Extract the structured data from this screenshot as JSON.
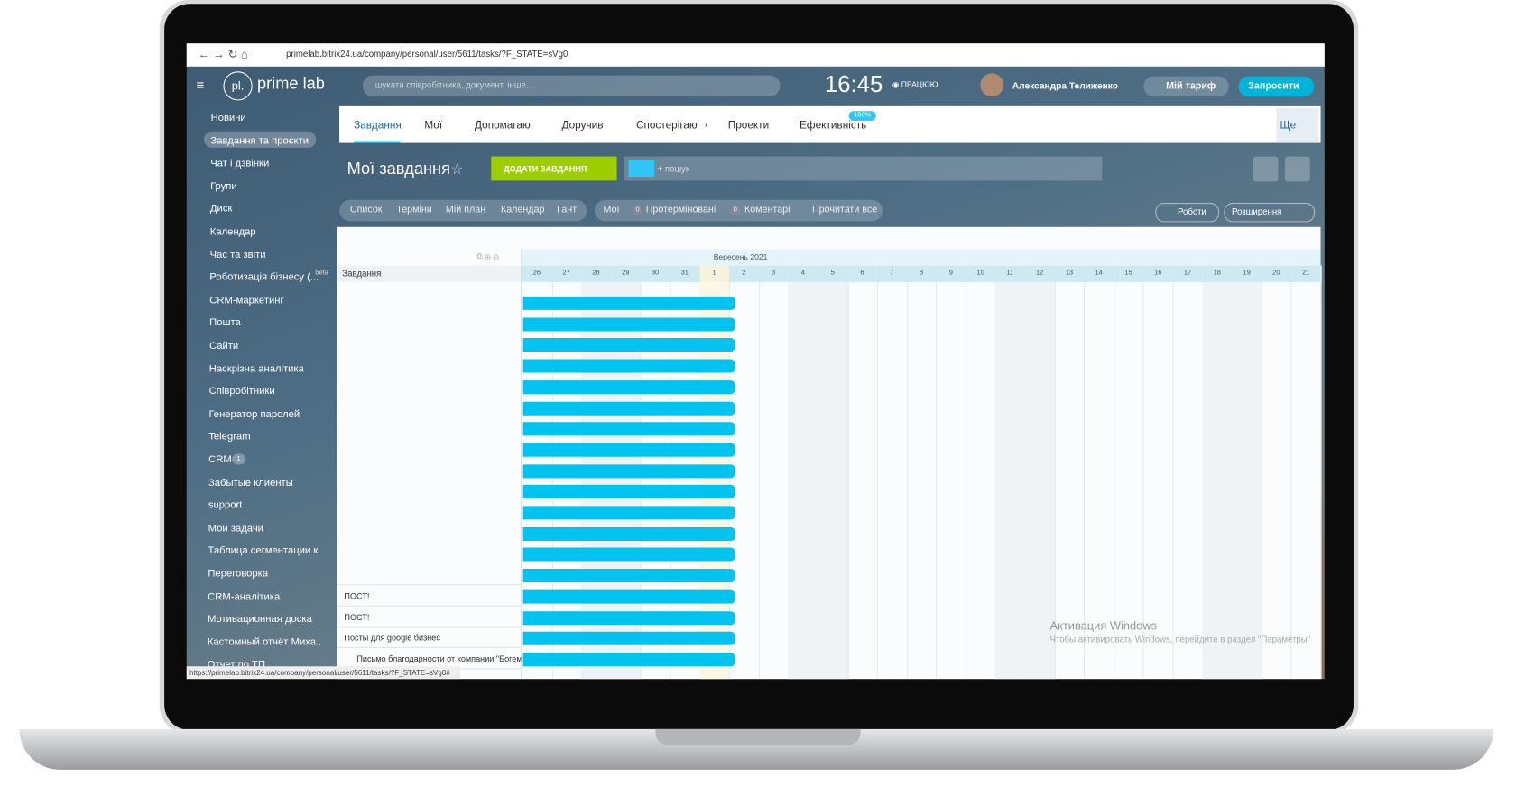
{
  "browser": {
    "url": "primelab.bitrix24.ua/company/personal/user/5611/tasks/?F_STATE=sVg0",
    "status_url": "https://primelab.bitrix24.ua/company/personal/user/5611/tasks/?F_STATE=sVg0#"
  },
  "header": {
    "logo_mark": "pl.",
    "logo": "prime lab",
    "search": "шукати співробітника, документ, інше...",
    "time": "16:45",
    "status": "ПРАЦЮЮ",
    "user": "Александра Телиженко",
    "tariff": "Мій тариф",
    "invite": "Запросити"
  },
  "sidebar": {
    "items": [
      "Новини",
      "Завдання та проєкти",
      "Чат і дзвінки",
      "Групи",
      "Диск",
      "Календар",
      "Час та звіти",
      "Роботизація бізнесу (...",
      "CRM-маркетинг",
      "Пошта",
      "Сайти",
      "Наскрізна аналітика",
      "Співробітники",
      "Генератор паролей",
      "Telegram",
      "CRM",
      "Забытые клиенты",
      "support",
      "Мои задачи",
      "Таблица сегментации к...",
      "Переговорка",
      "CRM-аналітика",
      "Мотивационная доска",
      "Кастомный отчёт Миха...",
      "Отчет по ТП"
    ],
    "beta": "beta",
    "crm_badge": "1"
  },
  "tabs": {
    "items": [
      "Завдання",
      "Мої",
      "Допомагаю",
      "Доручив",
      "Спостерігаю",
      "Проекти",
      "Ефективність"
    ],
    "badge": "100%",
    "more": "Ще"
  },
  "toolbar": {
    "title": "Мої завдання",
    "add": "ДОДАТИ ЗАВДАННЯ",
    "search": "+ пошук"
  },
  "views": {
    "items": [
      "Список",
      "Терміни",
      "Мій план",
      "Календар",
      "Гант"
    ],
    "mine": "Мої",
    "overdue_count": "0",
    "overdue": "Протерміновані",
    "comments_count": "0",
    "comments": "Коментарі",
    "read_all": "Прочитати все",
    "robots": "Роботи",
    "extensions": "Розширення"
  },
  "gantt": {
    "month": "Вересень 2021",
    "column": "Завдання",
    "days": [
      "26",
      "27",
      "28",
      "29",
      "30",
      "31",
      "1",
      "2",
      "3",
      "4",
      "5",
      "6",
      "7",
      "8",
      "9",
      "10",
      "11",
      "12",
      "13",
      "14",
      "15",
      "16",
      "17",
      "18",
      "19",
      "20",
      "21"
    ],
    "tasks": [
      "ПОСТ!",
      "ПОСТ!",
      "Посты для google бизнес",
      "Письмо благодарности от компании \"Богем"
    ]
  },
  "watermark": {
    "title": "Активация Windows",
    "text": "Чтобы активировать Windows, перейдите в раздел \"Параметры\""
  }
}
